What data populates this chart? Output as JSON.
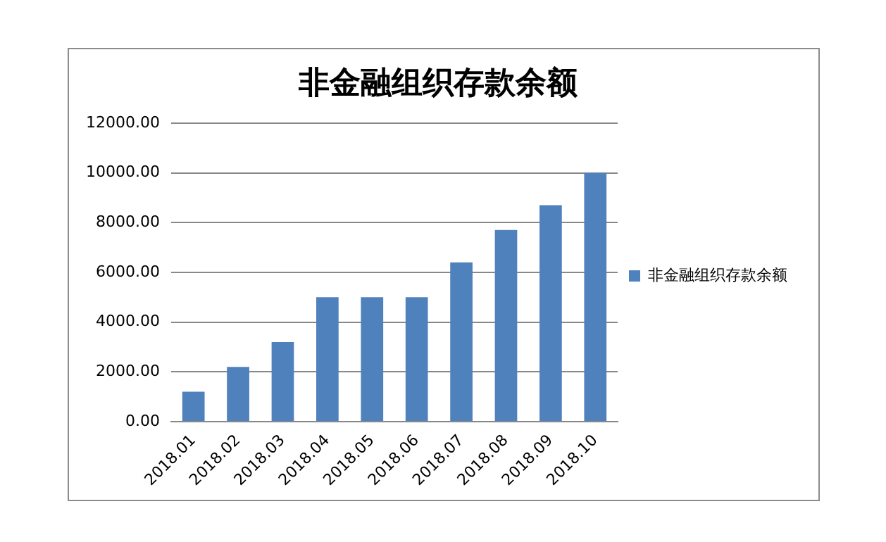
{
  "chart_data": {
    "type": "bar",
    "title": "非金融组织存款余额",
    "categories": [
      "2018.01",
      "2018.02",
      "2018.03",
      "2018.04",
      "2018.05",
      "2018.06",
      "2018.07",
      "2018.08",
      "2018.09",
      "2018.10"
    ],
    "series": [
      {
        "name": "非金融组织存款余额",
        "color": "#4f81bd",
        "values": [
          1200,
          2200,
          3200,
          5000,
          5000,
          5000,
          6400,
          7700,
          8700,
          10000
        ]
      }
    ],
    "ylim": [
      0,
      12000
    ],
    "yticks": [
      {
        "value": 0,
        "label": "0.00"
      },
      {
        "value": 2000,
        "label": "2000.00"
      },
      {
        "value": 4000,
        "label": "4000.00"
      },
      {
        "value": 6000,
        "label": "6000.00"
      },
      {
        "value": 8000,
        "label": "8000.00"
      },
      {
        "value": 10000,
        "label": "10000.00"
      },
      {
        "value": 12000,
        "label": "12000.00"
      }
    ],
    "grid": "y",
    "legend": "right"
  }
}
